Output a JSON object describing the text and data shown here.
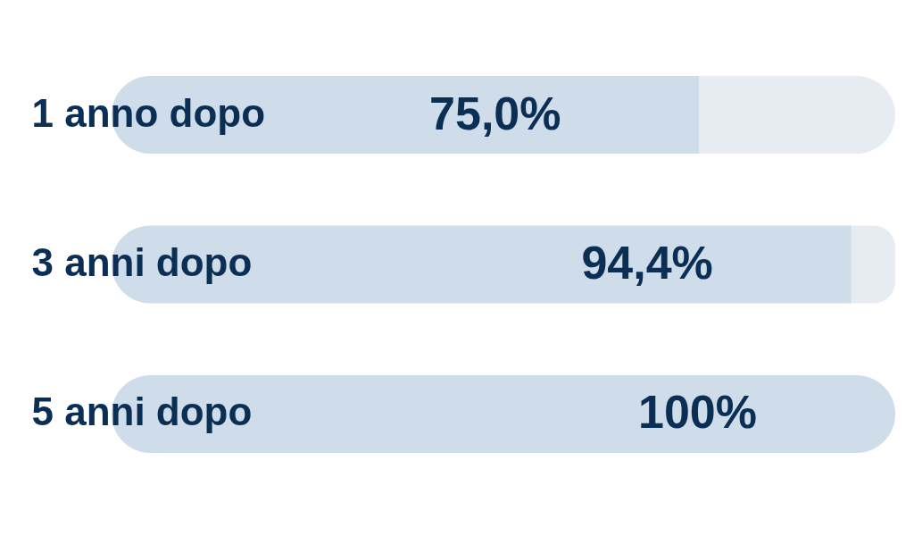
{
  "chart_data": {
    "type": "bar",
    "orientation": "horizontal",
    "stacked": true,
    "categories": [
      "1 anno dopo",
      "3 anni dopo",
      "5 anni dopo"
    ],
    "series": [
      {
        "color": "#cfdce9",
        "values": [
          75.0,
          94.4,
          100
        ],
        "value_labels": [
          "75,0%",
          "94,4%",
          "100%"
        ]
      },
      {
        "color": "#e7ecf2",
        "values": [
          25.0,
          5.6,
          null
        ]
      }
    ],
    "xlim": [
      0,
      100
    ],
    "tick_labels": "y",
    "grid": false,
    "legend": false
  }
}
